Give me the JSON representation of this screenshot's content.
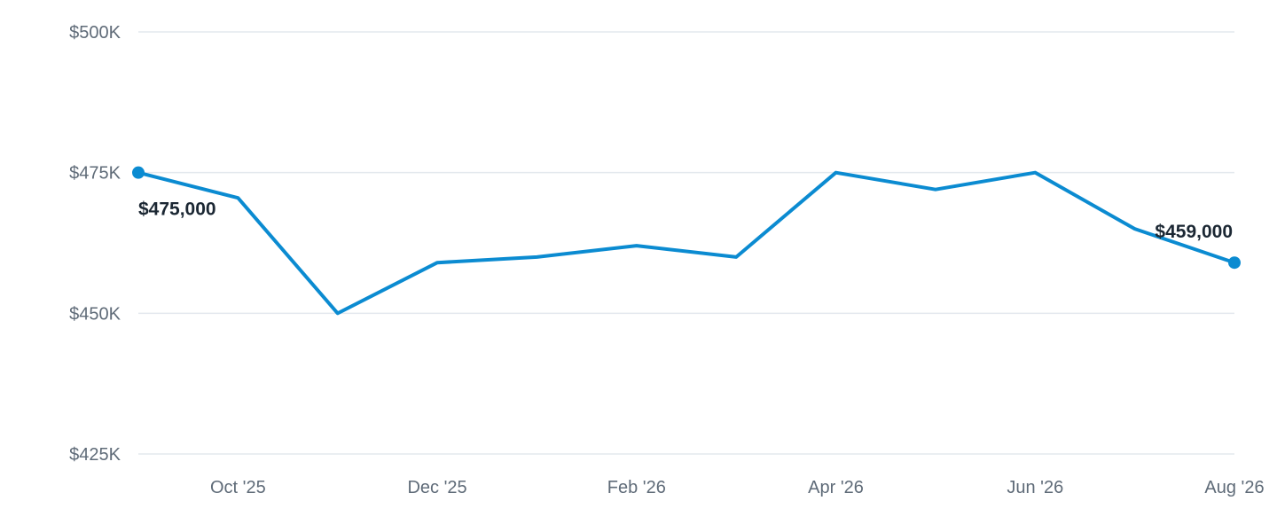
{
  "chart_data": {
    "type": "line",
    "title": "",
    "xlabel": "",
    "ylabel": "",
    "x": [
      "2025-09",
      "2025-10",
      "2025-11",
      "2025-12",
      "2026-01",
      "2026-02",
      "2026-03",
      "2026-04",
      "2026-05",
      "2026-06",
      "2026-07",
      "2026-08"
    ],
    "x_ticks": [
      {
        "x": "2025-10",
        "label": "Oct '25"
      },
      {
        "x": "2025-12",
        "label": "Dec '25"
      },
      {
        "x": "2026-02",
        "label": "Feb '26"
      },
      {
        "x": "2026-04",
        "label": "Apr '26"
      },
      {
        "x": "2026-06",
        "label": "Jun '26"
      },
      {
        "x": "2026-08",
        "label": "Aug '26"
      }
    ],
    "series": [
      {
        "values": [
          475000,
          470500,
          450000,
          459000,
          460000,
          462000,
          460000,
          475000,
          472000,
          475000,
          465000,
          459000
        ],
        "color": "#0b8bd1"
      }
    ],
    "ylim": [
      425000,
      500000
    ],
    "y_ticks": [
      {
        "value": 500000,
        "label": "$500K"
      },
      {
        "value": 475000,
        "label": "$475K"
      },
      {
        "value": 450000,
        "label": "$450K"
      },
      {
        "value": 425000,
        "label": "$425K"
      }
    ],
    "annotations": [
      {
        "x": "2025-09",
        "label": "$475,000",
        "marker": true
      },
      {
        "x": "2026-08",
        "label": "$459,000",
        "marker": true
      }
    ],
    "grid": true,
    "legend": "none"
  }
}
